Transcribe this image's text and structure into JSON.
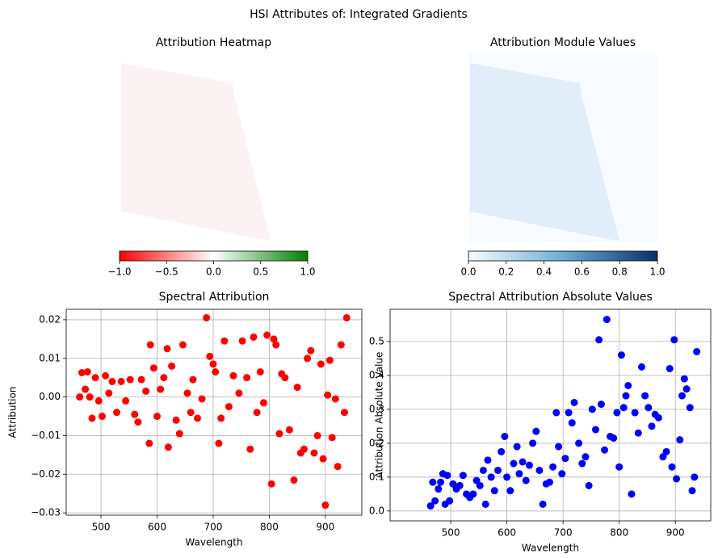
{
  "figure_title": "HSI Attributes of: Integrated Gradients",
  "chart_data": [
    {
      "type": "image",
      "title": "Attribution Heatmap",
      "colormap": [
        "#ff0000",
        "#ffffff",
        "#008000"
      ],
      "clim": [
        -1,
        1
      ],
      "colorbar_ticks": [
        {
          "value": -1,
          "label": "−1.0"
        },
        {
          "value": -0.5,
          "label": "−0.5"
        },
        {
          "value": 0,
          "label": "0.0"
        },
        {
          "value": 0.5,
          "label": "0.5"
        },
        {
          "value": 1,
          "label": "1.0"
        }
      ]
    },
    {
      "type": "image",
      "title": "Attribution Module Values",
      "colormap": [
        "#f7fbff",
        "#6baed6",
        "#08306b"
      ],
      "clim": [
        0,
        1
      ],
      "colorbar_ticks": [
        {
          "value": 0,
          "label": "0.0"
        },
        0.2,
        0.4,
        0.6,
        0.8,
        {
          "value": 1,
          "label": "1.0"
        }
      ]
    },
    {
      "type": "scatter",
      "title": "Spectral Attribution",
      "x_label": "Wavelength",
      "y_label": "Attribution",
      "color": "#ff0000",
      "grid": true,
      "xlim": [
        438,
        965
      ],
      "ylim": [
        -0.0306,
        0.0227
      ],
      "xticks": [
        500,
        600,
        700,
        800,
        900
      ],
      "yticks": [
        {
          "value": -0.03,
          "label": "−0.03"
        },
        {
          "value": -0.02,
          "label": "−0.02"
        },
        {
          "value": -0.01,
          "label": "−0.01"
        },
        {
          "value": 0,
          "label": "0.00"
        },
        0.01,
        0.02
      ],
      "x": [
        462,
        466,
        472,
        476,
        480,
        484,
        490,
        496,
        502,
        508,
        514,
        520,
        528,
        536,
        544,
        552,
        560,
        566,
        572,
        580,
        586,
        588,
        594,
        600,
        606,
        612,
        618,
        620,
        626,
        634,
        640,
        646,
        654,
        660,
        664,
        672,
        680,
        688,
        694,
        700,
        704,
        710,
        714,
        720,
        728,
        736,
        746,
        752,
        760,
        766,
        772,
        778,
        784,
        790,
        796,
        804,
        808,
        812,
        818,
        822,
        828,
        836,
        844,
        850,
        856,
        862,
        868,
        874,
        880,
        886,
        892,
        896,
        900,
        904,
        908,
        912,
        918,
        922,
        928,
        934,
        938
      ],
      "values": [
        0.0,
        0.0063,
        0.002,
        0.0065,
        0.0,
        -0.0055,
        0.005,
        -0.001,
        -0.005,
        0.0055,
        0.001,
        0.004,
        -0.004,
        0.004,
        -0.001,
        0.0045,
        -0.0045,
        -0.0065,
        0.0045,
        0.0015,
        -0.012,
        0.0135,
        0.0075,
        -0.005,
        0.002,
        0.005,
        0.0125,
        -0.013,
        0.008,
        -0.006,
        -0.0095,
        0.0135,
        0.001,
        -0.004,
        0.0045,
        -0.0055,
        -0.0005,
        0.0205,
        0.0105,
        0.0085,
        0.0065,
        -0.012,
        -0.0055,
        0.0145,
        -0.0025,
        0.0055,
        0.001,
        0.0145,
        0.005,
        -0.0135,
        0.0155,
        -0.004,
        0.0065,
        -0.0015,
        0.016,
        -0.0225,
        0.015,
        0.0135,
        -0.0095,
        0.006,
        0.005,
        -0.0085,
        -0.0215,
        0.0025,
        -0.0145,
        -0.0135,
        0.01,
        0.012,
        -0.0145,
        -0.01,
        0.0085,
        -0.016,
        -0.028,
        0.0005,
        0.0095,
        -0.0105,
        -0.0005,
        -0.018,
        0.0135,
        -0.004,
        0.0205
      ]
    },
    {
      "type": "scatter",
      "title": "Spectral Attribution Absolute Values",
      "x_label": "Wavelength",
      "y_label": "Attribution Absolute Value",
      "color": "#0000ff",
      "grid": true,
      "xlim": [
        392,
        963
      ],
      "ylim": [
        -0.029,
        0.595
      ],
      "xticks": [
        500,
        600,
        700,
        800,
        900
      ],
      "yticks": [
        {
          "value": 0,
          "label": "0.0"
        },
        0.1,
        0.2,
        0.3,
        0.4,
        0.5
      ],
      "x": [
        464,
        468,
        472,
        478,
        482,
        486,
        490,
        494,
        498,
        504,
        510,
        516,
        522,
        528,
        534,
        540,
        546,
        552,
        558,
        562,
        566,
        572,
        578,
        584,
        590,
        596,
        600,
        606,
        612,
        618,
        622,
        628,
        634,
        640,
        646,
        652,
        658,
        664,
        670,
        676,
        682,
        688,
        692,
        698,
        704,
        710,
        716,
        720,
        728,
        734,
        740,
        746,
        752,
        758,
        764,
        768,
        774,
        778,
        784,
        790,
        796,
        800,
        804,
        808,
        812,
        816,
        822,
        828,
        834,
        840,
        846,
        852,
        858,
        864,
        870,
        878,
        884,
        890,
        894,
        898,
        902,
        908,
        912,
        916,
        920,
        926,
        930,
        934,
        938
      ],
      "values": [
        0.015,
        0.085,
        0.03,
        0.065,
        0.085,
        0.11,
        0.02,
        0.105,
        0.03,
        0.08,
        0.065,
        0.075,
        0.105,
        0.05,
        0.04,
        0.05,
        0.09,
        0.075,
        0.12,
        0.02,
        0.15,
        0.1,
        0.06,
        0.12,
        0.175,
        0.22,
        0.1,
        0.06,
        0.14,
        0.19,
        0.11,
        0.145,
        0.09,
        0.135,
        0.2,
        0.235,
        0.12,
        0.02,
        0.08,
        0.085,
        0.13,
        0.29,
        0.19,
        0.11,
        0.155,
        0.29,
        0.26,
        0.32,
        0.2,
        0.14,
        0.16,
        0.075,
        0.3,
        0.24,
        0.505,
        0.315,
        0.18,
        0.565,
        0.22,
        0.215,
        0.29,
        0.13,
        0.46,
        0.305,
        0.34,
        0.37,
        0.05,
        0.29,
        0.23,
        0.425,
        0.34,
        0.305,
        0.25,
        0.285,
        0.275,
        0.16,
        0.175,
        0.42,
        0.13,
        0.505,
        0.095,
        0.21,
        0.34,
        0.39,
        0.36,
        0.305,
        0.06,
        0.1,
        0.47
      ]
    }
  ]
}
